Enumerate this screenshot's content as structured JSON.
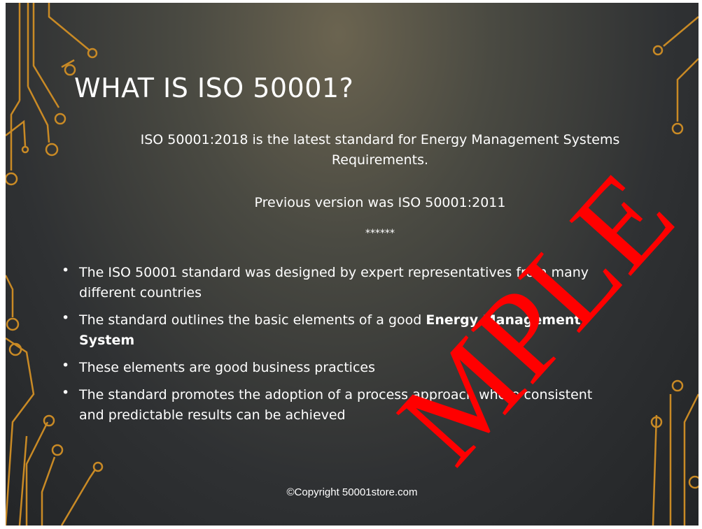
{
  "slide": {
    "title": "WHAT IS ISO 50001?",
    "intro": [
      "ISO 50001:2018 is the latest standard for Energy Management Systems Requirements.",
      "Previous version was ISO 50001:2011",
      "******"
    ],
    "bullets": [
      {
        "text": "The ISO 50001 standard was designed by expert representatives from many different countries"
      },
      {
        "text": "The standard outlines the basic elements of a good",
        "bold": "Energy Management System"
      },
      {
        "text": "These elements are good business practices"
      },
      {
        "text": "The standard promotes the adoption of a process approach where consistent and predictable results can be achieved"
      }
    ],
    "footer": "©Copyright 50001store.com",
    "watermark": "MPLE"
  }
}
